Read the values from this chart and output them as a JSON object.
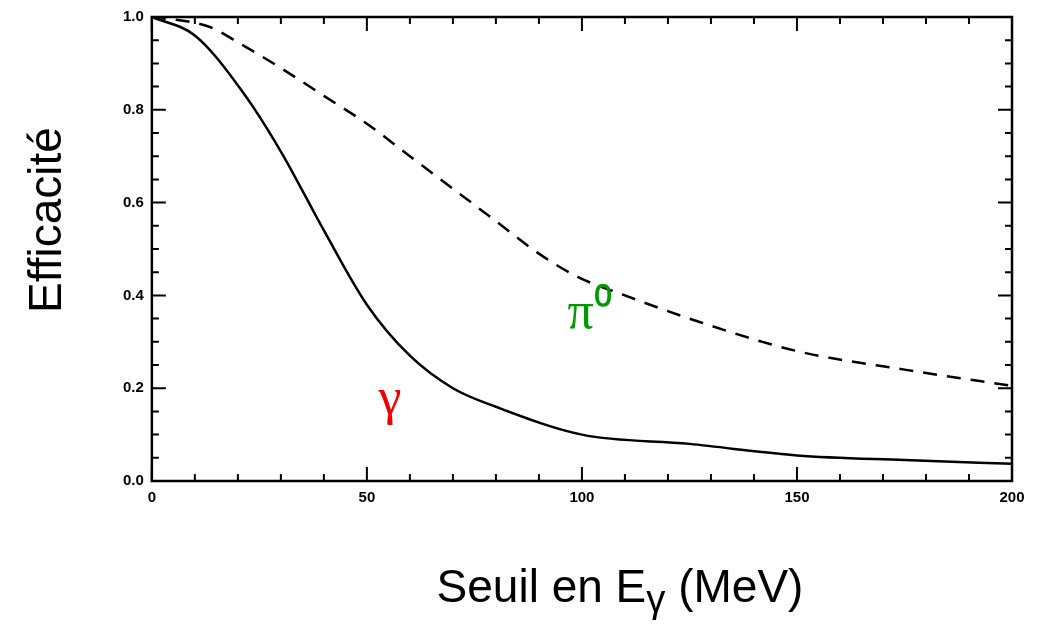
{
  "chart_data": {
    "type": "line",
    "xlabel": "Seuil en E$_{γ}$ (MeV)",
    "ylabel": "Efficacité",
    "xlim": [
      0,
      200
    ],
    "ylim": [
      0,
      1.0
    ],
    "xticks": [
      0,
      {
        "value": 10,
        "label": null
      },
      {
        "value": 20,
        "label": null
      },
      {
        "value": 30,
        "label": null
      },
      {
        "value": 40,
        "label": null
      },
      50,
      {
        "value": 60,
        "label": null
      },
      {
        "value": 70,
        "label": null
      },
      {
        "value": 80,
        "label": null
      },
      {
        "value": 90,
        "label": null
      },
      100,
      {
        "value": 110,
        "label": null
      },
      {
        "value": 120,
        "label": null
      },
      {
        "value": 130,
        "label": null
      },
      {
        "value": 140,
        "label": null
      },
      150,
      {
        "value": 160,
        "label": null
      },
      {
        "value": 170,
        "label": null
      },
      {
        "value": 180,
        "label": null
      },
      {
        "value": 190,
        "label": null
      },
      200
    ],
    "yticks": [
      {
        "value": 0,
        "label": "0.0"
      },
      {
        "value": 0.05,
        "label": null
      },
      {
        "value": 0.1,
        "label": null
      },
      {
        "value": 0.15,
        "label": null
      },
      0.2,
      {
        "value": 0.25,
        "label": null
      },
      {
        "value": 0.3,
        "label": null
      },
      {
        "value": 0.35,
        "label": null
      },
      0.4,
      {
        "value": 0.45,
        "label": null
      },
      {
        "value": 0.5,
        "label": null
      },
      {
        "value": 0.55,
        "label": null
      },
      0.6,
      {
        "value": 0.65,
        "label": null
      },
      {
        "value": 0.7,
        "label": null
      },
      {
        "value": 0.75,
        "label": null
      },
      0.8,
      {
        "value": 0.85,
        "label": null
      },
      {
        "value": 0.9,
        "label": null
      },
      {
        "value": 0.95,
        "label": null
      },
      {
        "value": 1.0,
        "label": "1.0"
      }
    ],
    "grid": false,
    "legend": false,
    "marker": "none",
    "series": [
      {
        "name": "γ",
        "color": "#000000",
        "line_style": "solid",
        "x": [
          0,
          10,
          21,
          30,
          40,
          50,
          60,
          70,
          80,
          100,
          125,
          150,
          175,
          200
        ],
        "values": [
          1.0,
          0.96,
          0.84,
          0.71,
          0.54,
          0.38,
          0.27,
          0.2,
          0.16,
          0.1,
          0.08,
          0.055,
          0.045,
          0.037
        ]
      },
      {
        "name": "π⁰",
        "color": "#000000",
        "line_style": "dashed",
        "x": [
          0,
          13,
          21,
          30,
          40,
          50,
          60,
          70,
          80,
          90,
          99,
          110,
          125,
          150,
          175,
          200
        ],
        "values": [
          1.0,
          0.98,
          0.94,
          0.89,
          0.83,
          0.77,
          0.7,
          0.63,
          0.56,
          0.49,
          0.44,
          0.4,
          0.35,
          0.28,
          0.24,
          0.205
        ]
      }
    ]
  }
}
